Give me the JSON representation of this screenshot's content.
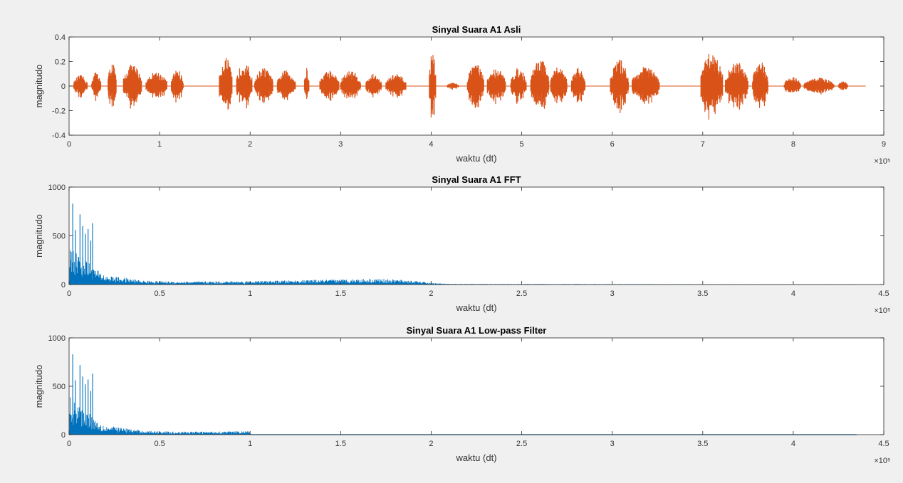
{
  "colors": {
    "figure_bg": "#f0f0f0",
    "axes_bg": "#ffffff",
    "orange": "#d95319",
    "blue": "#0072bd"
  },
  "chart_data": [
    {
      "type": "line",
      "title": "Sinyal Suara A1 Asli",
      "xlabel": "waktu (dt)",
      "ylabel": "magnitudo",
      "xlim": [
        0,
        9
      ],
      "ylim": [
        -0.4,
        0.4
      ],
      "xticks": [
        "0",
        "1",
        "2",
        "3",
        "4",
        "5",
        "6",
        "7",
        "8",
        "9"
      ],
      "yticks": [
        "-0.4",
        "-0.2",
        "0",
        "0.2",
        "0.4"
      ],
      "x_exponent": "×10⁵",
      "color": "orange",
      "bursts": [
        [
          0.05,
          0.2,
          0.09
        ],
        [
          0.25,
          0.35,
          0.12
        ],
        [
          0.43,
          0.52,
          0.2
        ],
        [
          0.6,
          0.8,
          0.18
        ],
        [
          0.85,
          1.08,
          0.12
        ],
        [
          1.13,
          1.26,
          0.14
        ],
        [
          1.66,
          1.8,
          0.24
        ],
        [
          1.85,
          2.02,
          0.2
        ],
        [
          2.05,
          2.25,
          0.15
        ],
        [
          2.3,
          2.5,
          0.13
        ],
        [
          2.6,
          2.65,
          0.15
        ],
        [
          2.77,
          2.98,
          0.13
        ],
        [
          3.0,
          3.22,
          0.13
        ],
        [
          3.28,
          3.45,
          0.1
        ],
        [
          3.5,
          3.72,
          0.1
        ],
        [
          3.98,
          4.05,
          0.3
        ],
        [
          4.18,
          4.3,
          0.03
        ],
        [
          4.4,
          4.58,
          0.2
        ],
        [
          4.62,
          4.82,
          0.15
        ],
        [
          4.88,
          5.05,
          0.15
        ],
        [
          5.1,
          5.3,
          0.23
        ],
        [
          5.32,
          5.5,
          0.16
        ],
        [
          5.55,
          5.7,
          0.15
        ],
        [
          5.98,
          6.18,
          0.22
        ],
        [
          6.22,
          6.52,
          0.16
        ],
        [
          6.98,
          7.22,
          0.28
        ],
        [
          7.25,
          7.5,
          0.2
        ],
        [
          7.55,
          7.72,
          0.22
        ],
        [
          7.9,
          8.08,
          0.08
        ],
        [
          8.12,
          8.45,
          0.07
        ],
        [
          8.5,
          8.6,
          0.04
        ]
      ]
    },
    {
      "type": "area",
      "title": "Sinyal Suara A1 FFT",
      "xlabel": "waktu (dt)",
      "ylabel": "magnitudo",
      "xlim": [
        0,
        4.5
      ],
      "ylim": [
        0,
        1000
      ],
      "xticks": [
        "0",
        "0.5",
        "1",
        "1.5",
        "2",
        "2.5",
        "3",
        "3.5",
        "4",
        "4.5"
      ],
      "yticks": [
        "0",
        "500",
        "1000"
      ],
      "x_exponent": "×10⁵",
      "color": "blue",
      "peaks": [
        [
          0.02,
          830
        ],
        [
          0.035,
          560
        ],
        [
          0.06,
          720
        ],
        [
          0.075,
          600
        ],
        [
          0.09,
          520
        ],
        [
          0.105,
          570
        ],
        [
          0.12,
          450
        ],
        [
          0.13,
          630
        ]
      ],
      "envelope": [
        [
          0,
          350
        ],
        [
          0.15,
          130
        ],
        [
          0.2,
          80
        ],
        [
          0.3,
          60
        ],
        [
          0.4,
          35
        ],
        [
          0.6,
          25
        ],
        [
          0.8,
          28
        ],
        [
          1.0,
          30
        ],
        [
          1.2,
          35
        ],
        [
          1.5,
          45
        ],
        [
          1.7,
          50
        ],
        [
          1.85,
          40
        ],
        [
          1.95,
          25
        ],
        [
          2.0,
          15
        ],
        [
          2.1,
          6
        ],
        [
          3,
          4
        ],
        [
          4.35,
          2
        ]
      ],
      "cutoff": null
    },
    {
      "type": "area",
      "title": "Sinyal Suara A1 Low-pass Filter",
      "xlabel": "waktu (dt)",
      "ylabel": "magnitudo",
      "xlim": [
        0,
        4.5
      ],
      "ylim": [
        0,
        1000
      ],
      "xticks": [
        "0",
        "0.5",
        "1",
        "1.5",
        "2",
        "2.5",
        "3",
        "3.5",
        "4",
        "4.5"
      ],
      "yticks": [
        "0",
        "500",
        "1000"
      ],
      "x_exponent": "×10⁵",
      "color": "blue",
      "peaks": [
        [
          0.02,
          830
        ],
        [
          0.035,
          560
        ],
        [
          0.06,
          720
        ],
        [
          0.075,
          600
        ],
        [
          0.09,
          520
        ],
        [
          0.105,
          570
        ],
        [
          0.12,
          450
        ],
        [
          0.13,
          630
        ]
      ],
      "envelope": [
        [
          0,
          350
        ],
        [
          0.15,
          130
        ],
        [
          0.2,
          80
        ],
        [
          0.3,
          60
        ],
        [
          0.4,
          35
        ],
        [
          0.6,
          25
        ],
        [
          0.8,
          28
        ],
        [
          1.0,
          30
        ]
      ],
      "cutoff": 1.0,
      "tail_to": 4.35
    }
  ]
}
